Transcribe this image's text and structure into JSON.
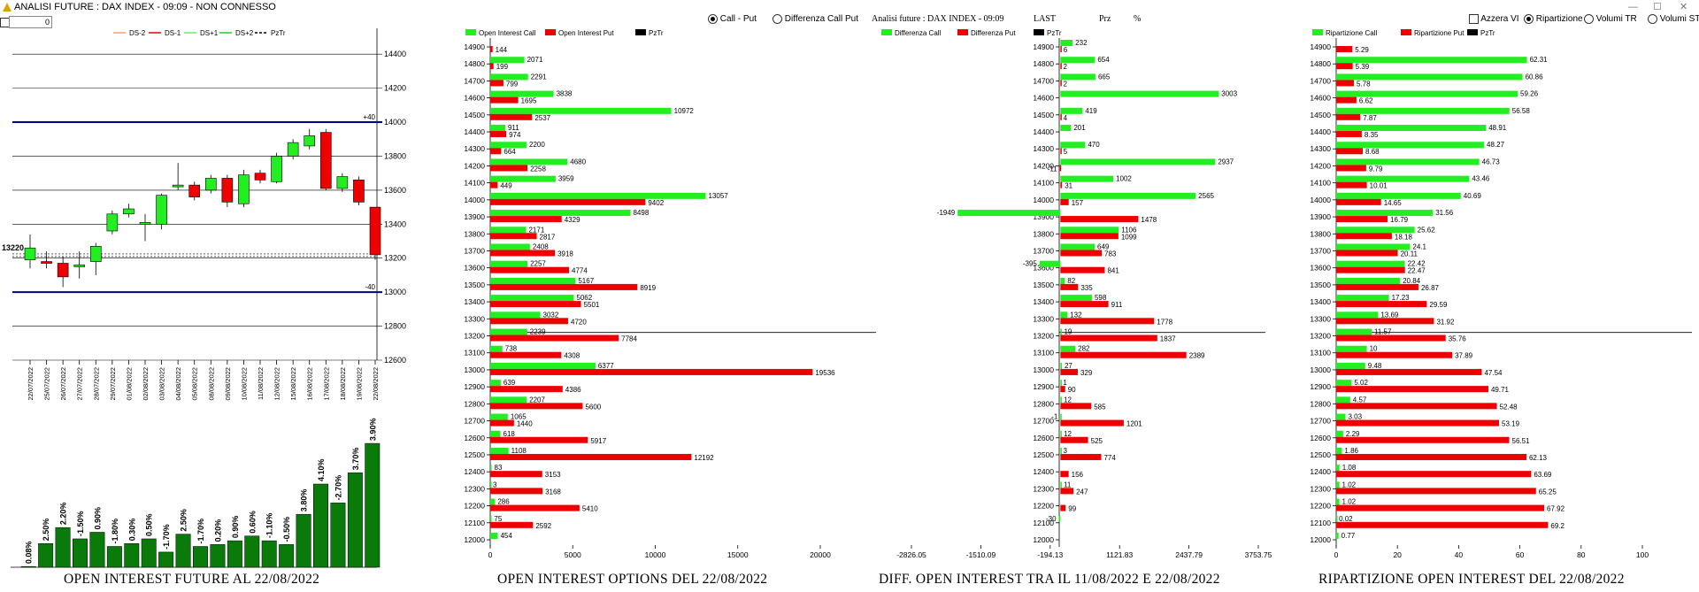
{
  "window": {
    "title": "ANALISI FUTURE : DAX INDEX - 09:09 - NON CONNESSO",
    "min_glyph": "—",
    "max_glyph": "☐",
    "close_glyph": "✕"
  },
  "controls": {
    "offset_value": "0",
    "call_put_label": "Call - Put",
    "diff_call_put_label": "Differenza Call Put",
    "azzera_label": "Azzera VI",
    "ripartizione_label": "Ripartizione",
    "volumi_tr_label": "Volumi TR",
    "volumi_st_label": "Volumi ST"
  },
  "header_diff": {
    "left": "Analisi future : DAX INDEX - 09:09",
    "last": "LAST",
    "prz": "Prz",
    "pct": "%"
  },
  "colors": {
    "green": "#22ee22",
    "red": "#ee0000",
    "dark_green": "#0a7a0a",
    "blue": "#00008b"
  },
  "chart_data": [
    {
      "id": "future",
      "type": "candlestick",
      "caption": "OPEN INTEREST FUTURE AL 22/08/2022",
      "legend": [
        "DS-2",
        "DS-1",
        "DS+1",
        "DS+2",
        "PzTr"
      ],
      "dates": [
        "22/07/2022",
        "25/07/2022",
        "26/07/2022",
        "27/07/2022",
        "28/07/2022",
        "29/07/2022",
        "01/08/2022",
        "02/08/2022",
        "03/08/2022",
        "04/08/2022",
        "05/08/2022",
        "08/08/2022",
        "09/08/2022",
        "10/08/2022",
        "11/08/2022",
        "12/08/2022",
        "15/08/2022",
        "16/08/2022",
        "17/08/2022",
        "18/08/2022",
        "19/08/2022",
        "22/08/2022"
      ],
      "candles": [
        {
          "o": 13190,
          "c": 13260,
          "h": 13340,
          "l": 13140
        },
        {
          "o": 13180,
          "c": 13170,
          "h": 13240,
          "l": 13140
        },
        {
          "o": 13170,
          "c": 13090,
          "h": 13210,
          "l": 13030
        },
        {
          "o": 13150,
          "c": 13160,
          "h": 13240,
          "l": 13080
        },
        {
          "o": 13180,
          "c": 13270,
          "h": 13290,
          "l": 13100
        },
        {
          "o": 13360,
          "c": 13460,
          "h": 13480,
          "l": 13340
        },
        {
          "o": 13460,
          "c": 13490,
          "h": 13520,
          "l": 13440
        },
        {
          "o": 13400,
          "c": 13410,
          "h": 13460,
          "l": 13300
        },
        {
          "o": 13400,
          "c": 13570,
          "h": 13580,
          "l": 13370
        },
        {
          "o": 13620,
          "c": 13630,
          "h": 13760,
          "l": 13600
        },
        {
          "o": 13630,
          "c": 13560,
          "h": 13650,
          "l": 13540
        },
        {
          "o": 13600,
          "c": 13670,
          "h": 13690,
          "l": 13580
        },
        {
          "o": 13670,
          "c": 13530,
          "h": 13690,
          "l": 13500
        },
        {
          "o": 13520,
          "c": 13690,
          "h": 13720,
          "l": 13500
        },
        {
          "o": 13700,
          "c": 13660,
          "h": 13720,
          "l": 13640
        },
        {
          "o": 13650,
          "c": 13800,
          "h": 13820,
          "l": 13640
        },
        {
          "o": 13800,
          "c": 13880,
          "h": 13900,
          "l": 13780
        },
        {
          "o": 13860,
          "c": 13920,
          "h": 13960,
          "l": 13840
        },
        {
          "o": 13940,
          "c": 13610,
          "h": 13960,
          "l": 13600
        },
        {
          "o": 13610,
          "c": 13680,
          "h": 13700,
          "l": 13590
        },
        {
          "o": 13660,
          "c": 13530,
          "h": 13680,
          "l": 13510
        },
        {
          "o": 13500,
          "c": 13220,
          "h": 13500,
          "l": 13190
        }
      ],
      "ylim": [
        12600,
        14500
      ],
      "yticks": [
        14400,
        14200,
        14000,
        13800,
        13600,
        13400,
        13200,
        13000,
        12800,
        12600
      ],
      "blue_lines": [
        {
          "value": 14000,
          "label": "+40"
        },
        {
          "value": 13000,
          "label": "-40"
        }
      ],
      "last_price": "13220",
      "oi_bars": [
        {
          "value": 0.08,
          "label": "0.08%"
        },
        {
          "value": 2.5,
          "label": "2.50%"
        },
        {
          "value": 4.2,
          "label": "2.20%"
        },
        {
          "value": 3.0,
          "label": "-1.50%"
        },
        {
          "value": 3.7,
          "label": "0.90%"
        },
        {
          "value": 2.2,
          "label": "-1.80%"
        },
        {
          "value": 2.5,
          "label": "0.30%"
        },
        {
          "value": 3.0,
          "label": "0.50%"
        },
        {
          "value": 1.6,
          "label": "-1.70%"
        },
        {
          "value": 3.5,
          "label": "2.50%"
        },
        {
          "value": 2.2,
          "label": "-1.70%"
        },
        {
          "value": 2.4,
          "label": "0.20%"
        },
        {
          "value": 2.8,
          "label": "0.90%"
        },
        {
          "value": 3.3,
          "label": "0.60%"
        },
        {
          "value": 2.8,
          "label": "-1.10%"
        },
        {
          "value": 2.4,
          "label": "-0.50%"
        },
        {
          "value": 5.6,
          "label": "3.80%"
        },
        {
          "value": 8.8,
          "label": "4.10%"
        },
        {
          "value": 6.8,
          "label": "-2.70%"
        },
        {
          "value": 10.0,
          "label": "3.70%"
        },
        {
          "value": 13.1,
          "label": "3.90%"
        }
      ]
    },
    {
      "id": "oi_options",
      "type": "bar",
      "caption": "OPEN INTEREST OPTIONS DEL 22/08/2022",
      "legend": [
        "Open Interest Call",
        "Open Interest Put",
        "PzTr"
      ],
      "strikes": [
        14900,
        14800,
        14700,
        14600,
        14500,
        14400,
        14300,
        14200,
        14100,
        14000,
        13900,
        13800,
        13700,
        13600,
        13500,
        13400,
        13300,
        13200,
        13100,
        13000,
        12900,
        12800,
        12700,
        12600,
        12500,
        12400,
        12300,
        12200,
        12100,
        12000
      ],
      "call": [
        null,
        2071,
        2291,
        3838,
        10972,
        911,
        2200,
        4680,
        3959,
        13057,
        8498,
        2171,
        2408,
        2257,
        5167,
        5062,
        3032,
        2239,
        738,
        6377,
        639,
        2207,
        1065,
        618,
        1108,
        83,
        3,
        286,
        75,
        454
      ],
      "put": [
        144,
        199,
        799,
        1695,
        2537,
        974,
        664,
        2258,
        449,
        9402,
        4329,
        2817,
        3918,
        4774,
        8919,
        5501,
        4720,
        7784,
        4308,
        19536,
        4386,
        5600,
        1440,
        5917,
        12192,
        3153,
        3168,
        5410,
        2592,
        null
      ],
      "xlim": [
        0,
        20000
      ],
      "xticks": [
        0,
        5000,
        10000,
        15000,
        20000
      ],
      "pztr": 13220
    },
    {
      "id": "diff_oi",
      "type": "bar",
      "caption": "DIFF. OPEN INTEREST TRA IL 11/08/2022 E 22/08/2022",
      "legend": [
        "Differenza Call",
        "Differenza Put",
        "PzTr"
      ],
      "strikes": [
        14900,
        14800,
        14700,
        14600,
        14500,
        14400,
        14300,
        14200,
        14100,
        14000,
        13900,
        13800,
        13700,
        13600,
        13500,
        13400,
        13300,
        13200,
        13100,
        13000,
        12900,
        12800,
        12700,
        12600,
        12500,
        12400,
        12300,
        12200,
        12100,
        12000
      ],
      "call": [
        232,
        654,
        665,
        3003,
        419,
        201,
        470,
        2937,
        1002,
        2565,
        -1949,
        1106,
        649,
        -395,
        82,
        598,
        132,
        19,
        282,
        27,
        1,
        12,
        -1,
        12,
        3,
        null,
        11,
        null,
        -30,
        null
      ],
      "put": [
        6,
        2,
        2,
        null,
        4,
        null,
        5,
        -11,
        31,
        157,
        1478,
        1099,
        783,
        841,
        335,
        911,
        1778,
        1837,
        2389,
        329,
        90,
        585,
        1201,
        525,
        774,
        156,
        247,
        99,
        null,
        null
      ],
      "call_labels": [
        "232",
        "654",
        "665",
        "3003",
        "419",
        "201",
        "470",
        "2937",
        "1002",
        "2565",
        "-1949",
        "1106",
        "649",
        "-395",
        "82",
        "598",
        "132",
        "19",
        "282",
        "27",
        "1",
        "12",
        "-1",
        "12",
        "3",
        "",
        "11",
        "",
        "-30",
        ""
      ],
      "put_labels": [
        "6",
        "2",
        "2",
        "",
        "4",
        "",
        "5",
        "-11",
        "31",
        "157",
        "1478",
        "1099",
        "783",
        "841",
        "335",
        "911",
        "1778",
        "1837",
        "2389",
        "329",
        "90",
        "585",
        "1201",
        "525",
        "774",
        "156",
        "247",
        "99",
        "",
        ""
      ],
      "xlim": [
        -2826.05,
        3753.75
      ],
      "xticks": [
        "-2826.05",
        "-1510.09",
        "-194.13",
        "1121.83",
        "2437.79",
        "3753.75"
      ],
      "pztr": 13220
    },
    {
      "id": "ripartizione",
      "type": "bar",
      "caption": "RIPARTIZIONE OPEN INTEREST DEL 22/08/2022",
      "legend": [
        "Ripartizione Call",
        "Ripartizione Put",
        "PzTr"
      ],
      "strikes": [
        14900,
        14800,
        14700,
        14600,
        14500,
        14400,
        14300,
        14200,
        14100,
        14000,
        13900,
        13800,
        13700,
        13600,
        13500,
        13400,
        13300,
        13200,
        13100,
        13000,
        12900,
        12800,
        12700,
        12600,
        12500,
        12400,
        12300,
        12200,
        12100,
        12000
      ],
      "call": [
        null,
        62.31,
        60.86,
        59.26,
        56.58,
        48.91,
        48.27,
        46.73,
        43.46,
        40.69,
        31.56,
        25.62,
        24.1,
        22.42,
        20.84,
        17.23,
        13.69,
        11.57,
        10,
        9.48,
        5.02,
        4.57,
        3.03,
        2.29,
        1.86,
        1.08,
        1.02,
        1.02,
        0.02,
        0.77
      ],
      "put": [
        5.29,
        5.39,
        5.78,
        6.62,
        7.87,
        8.35,
        8.68,
        9.79,
        10.01,
        14.65,
        16.79,
        18.18,
        20.11,
        22.47,
        26.87,
        29.59,
        31.92,
        35.76,
        37.89,
        47.54,
        49.71,
        52.48,
        53.19,
        56.51,
        62.13,
        63.69,
        65.25,
        67.92,
        69.2,
        null
      ],
      "xlim": [
        0,
        100
      ],
      "xticks": [
        0,
        20,
        40,
        60,
        80,
        100
      ],
      "pztr": 13220
    }
  ]
}
